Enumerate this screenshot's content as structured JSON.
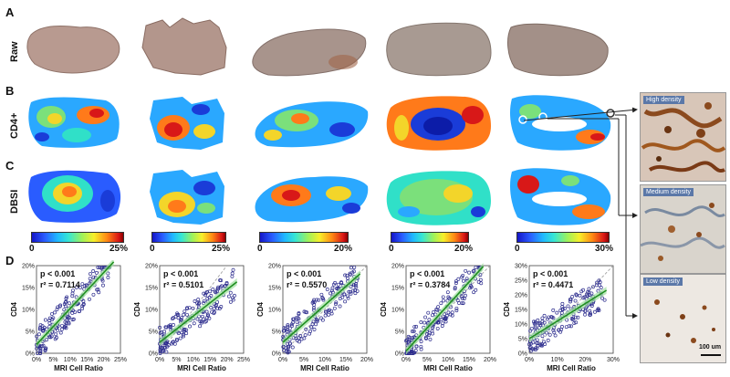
{
  "panels": {
    "a": "A",
    "b": "B",
    "c": "C",
    "d": "D"
  },
  "row_labels": {
    "raw": "Raw",
    "cd4": "CD4+",
    "dbsi": "DBSI"
  },
  "scales": [
    {
      "min": "0",
      "max": "25%"
    },
    {
      "min": "0",
      "max": "25%"
    },
    {
      "min": "0",
      "max": "20%"
    },
    {
      "min": "0",
      "max": "20%"
    },
    {
      "min": "0",
      "max": "30%"
    }
  ],
  "histology": {
    "high": "High density",
    "medium": "Medium density",
    "low": "Low density",
    "scale_bar": "100 um"
  },
  "colors": {
    "points": "#2e2e8e",
    "fit": "#1f8f1f",
    "ci": "#9fe09f"
  },
  "chart_data": [
    {
      "type": "scatter",
      "xlabel": "MRI Cell Ratio",
      "ylabel": "CD4",
      "p": "p < 0.001",
      "r2": "r² = 0.7114",
      "xticks": [
        "0%",
        "5%",
        "10%",
        "15%",
        "20%",
        "25%"
      ],
      "yticks": [
        "0%",
        "5%",
        "10%",
        "15%",
        "20%"
      ],
      "xlim": [
        0,
        25
      ],
      "ylim": [
        0,
        20
      ],
      "slope": 0.82,
      "intercept": 2.0
    },
    {
      "type": "scatter",
      "xlabel": "MRI Cell Ratio",
      "ylabel": "CD4",
      "p": "p < 0.001",
      "r2": "r² = 0.5101",
      "xticks": [
        "0%",
        "5%",
        "10%",
        "15%",
        "20%",
        "25%"
      ],
      "yticks": [
        "0%",
        "5%",
        "10%",
        "15%",
        "20%"
      ],
      "xlim": [
        0,
        25
      ],
      "ylim": [
        0,
        20
      ],
      "slope": 0.6,
      "intercept": 2.5
    },
    {
      "type": "scatter",
      "xlabel": "MRI Cell Ratio",
      "ylabel": "CD4",
      "p": "p < 0.001",
      "r2": "r² = 0.5570",
      "xticks": [
        "0%",
        "5%",
        "10%",
        "15%",
        "20%"
      ],
      "yticks": [
        "0%",
        "5%",
        "10%",
        "15%",
        "20%"
      ],
      "xlim": [
        0,
        20
      ],
      "ylim": [
        0,
        20
      ],
      "slope": 0.85,
      "intercept": 2.5
    },
    {
      "type": "scatter",
      "xlabel": "MRI Cell Ratio",
      "ylabel": "CD4",
      "p": "p < 0.001",
      "r2": "r² = 0.3784",
      "xticks": [
        "0%",
        "5%",
        "10%",
        "15%",
        "20%"
      ],
      "yticks": [
        "0%",
        "5%",
        "10%",
        "15%",
        "20%"
      ],
      "xlim": [
        0,
        20
      ],
      "ylim": [
        0,
        20
      ],
      "slope": 1.05,
      "intercept": 0.5
    },
    {
      "type": "scatter",
      "xlabel": "MRI Cell Ratio",
      "ylabel": "CD4",
      "p": "p < 0.001",
      "r2": "r² = 0.4471",
      "xticks": [
        "0%",
        "10%",
        "20%",
        "30%"
      ],
      "yticks": [
        "0%",
        "5%",
        "10%",
        "15%",
        "20%",
        "25%",
        "30%"
      ],
      "xlim": [
        0,
        30
      ],
      "ylim": [
        0,
        30
      ],
      "slope": 0.6,
      "intercept": 5.0
    }
  ]
}
